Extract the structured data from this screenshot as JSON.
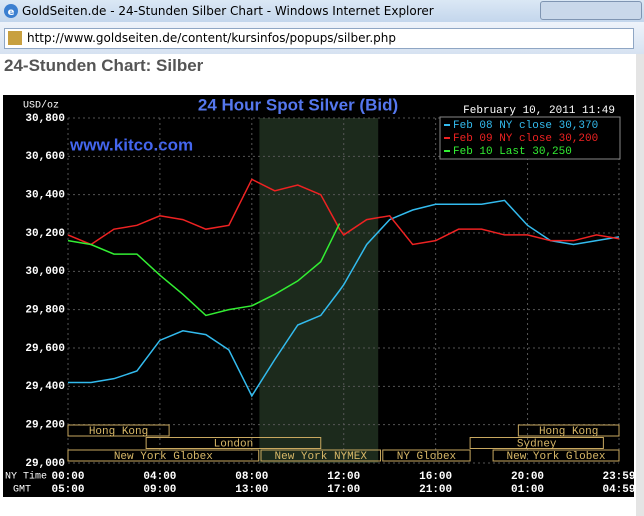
{
  "window": {
    "title": "GoldSeiten.de - 24-Stunden Silber Chart - Windows Internet Explorer",
    "url": "http://www.goldseiten.de/content/kursinfos/popups/silber.php"
  },
  "page": {
    "heading": "24-Stunden Chart: Silber"
  },
  "chart_data": {
    "type": "line",
    "title": "24 Hour Spot Silver (Bid)",
    "y_label": "USD/oz",
    "timestamp": "February 10, 2011 11:49",
    "watermark": "www.kitco.com",
    "x_row_labels": [
      "NY Time",
      "GMT"
    ],
    "x": [
      0,
      1,
      2,
      3,
      4,
      5,
      6,
      7,
      8,
      9,
      10,
      11,
      11.82,
      12,
      13,
      14,
      15,
      16,
      17,
      18,
      19,
      20,
      21,
      22,
      23,
      23.98
    ],
    "series": [
      {
        "name": "Feb 08 NY close 30,370",
        "color": "#33bbee",
        "values": [
          29.42,
          29.42,
          29.44,
          29.48,
          29.64,
          29.69,
          29.67,
          29.59,
          29.35,
          29.54,
          29.72,
          29.77,
          29.9,
          29.93,
          30.14,
          30.27,
          30.32,
          30.35,
          30.35,
          30.35,
          30.37,
          30.24,
          30.16,
          30.14,
          30.16,
          30.18
        ]
      },
      {
        "name": "Feb 09 NY close 30,200",
        "color": "#ee2222",
        "values": [
          30.19,
          30.14,
          30.22,
          30.24,
          30.29,
          30.27,
          30.22,
          30.24,
          30.48,
          30.42,
          30.45,
          30.4,
          30.22,
          30.19,
          30.27,
          30.29,
          30.14,
          30.16,
          30.22,
          30.22,
          30.19,
          30.19,
          30.16,
          30.16,
          30.19,
          30.17
        ]
      },
      {
        "name": "Feb 10 Last 30,250",
        "color": "#33ee33",
        "values": [
          30.16,
          30.14,
          30.09,
          30.09,
          29.98,
          29.88,
          29.77,
          29.8,
          29.82,
          29.88,
          29.95,
          30.05,
          30.25,
          null,
          null,
          null,
          null,
          null,
          null,
          null,
          null,
          null,
          null,
          null,
          null,
          null
        ]
      }
    ],
    "xlim": [
      0,
      23.98
    ],
    "xticks": [
      {
        "value": 0,
        "label": "00:00"
      },
      {
        "value": 4,
        "label": "04:00"
      },
      {
        "value": 8,
        "label": "08:00"
      },
      {
        "value": 12,
        "label": "12:00"
      },
      {
        "value": 16,
        "label": "16:00"
      },
      {
        "value": 20,
        "label": "20:00"
      },
      {
        "value": 23.98,
        "label": "23:59"
      }
    ],
    "x2ticks": [
      {
        "value": 0,
        "label": "05:00"
      },
      {
        "value": 4,
        "label": "09:00"
      },
      {
        "value": 8,
        "label": "13:00"
      },
      {
        "value": 12,
        "label": "17:00"
      },
      {
        "value": 16,
        "label": "21:00"
      },
      {
        "value": 20,
        "label": "01:00"
      },
      {
        "value": 23.98,
        "label": "04:59"
      }
    ],
    "ylim": [
      29,
      30.8
    ],
    "yticks": [
      {
        "value": 29,
        "label": "29,000"
      },
      {
        "value": 29.2,
        "label": "29,200"
      },
      {
        "value": 29.4,
        "label": "29,400"
      },
      {
        "value": 29.6,
        "label": "29,600"
      },
      {
        "value": 29.8,
        "label": "29,800"
      },
      {
        "value": 30,
        "label": "30,000"
      },
      {
        "value": 30.2,
        "label": "30,200"
      },
      {
        "value": 30.4,
        "label": "30,400"
      },
      {
        "value": 30.6,
        "label": "30,600"
      },
      {
        "value": 30.8,
        "label": "30,800"
      }
    ],
    "grid": true,
    "sessions": [
      "Hong Kong",
      "London",
      "New York Globex",
      "New York NYMEX",
      "NY Globex",
      "Hong Kong",
      "Sydney",
      "New York Globex"
    ]
  }
}
